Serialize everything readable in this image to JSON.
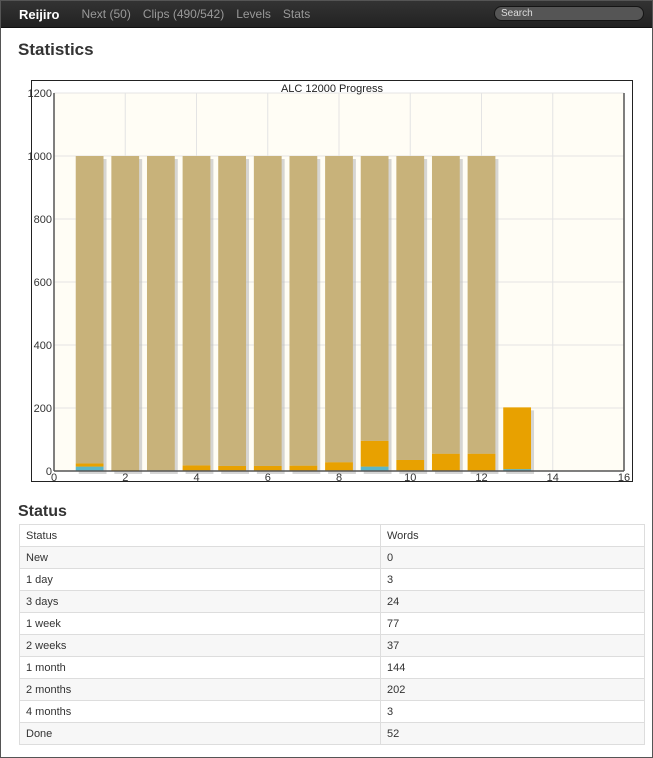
{
  "nav": {
    "brand": "Reijiro",
    "links": [
      "Next (50)",
      "Clips (490/542)",
      "Levels",
      "Stats"
    ],
    "search_placeholder": "Search"
  },
  "page": {
    "statistics_heading": "Statistics",
    "status_heading": "Status"
  },
  "chart_data": {
    "type": "bar",
    "title": "ALC 12000 Progress",
    "xlabel": "",
    "ylabel": "",
    "xlim": [
      0,
      16
    ],
    "ylim": [
      0,
      1200
    ],
    "x_ticks": [
      0,
      2,
      4,
      6,
      8,
      10,
      12,
      14,
      16
    ],
    "y_ticks": [
      0,
      200,
      400,
      600,
      800,
      1000,
      1200
    ],
    "grid": true,
    "stacked": true,
    "x": [
      1,
      2,
      3,
      4,
      5,
      6,
      7,
      8,
      9,
      10,
      11,
      12,
      13
    ],
    "series": [
      {
        "color": "#5bb7c7",
        "values": [
          14,
          1,
          0,
          1,
          0,
          0,
          1,
          1,
          14,
          2,
          1,
          1,
          6
        ]
      },
      {
        "color": "#e8a100",
        "values": [
          10,
          2,
          2,
          17,
          16,
          16,
          16,
          27,
          82,
          33,
          54,
          54,
          196
        ]
      },
      {
        "color": "#c8b27a",
        "values": [
          976,
          997,
          998,
          982,
          984,
          984,
          983,
          972,
          904,
          965,
          945,
          945,
          0
        ]
      }
    ]
  },
  "status_table": {
    "headers": [
      "Status",
      "Words"
    ],
    "rows": [
      [
        "New",
        "0"
      ],
      [
        "1 day",
        "3"
      ],
      [
        "3 days",
        "24"
      ],
      [
        "1 week",
        "77"
      ],
      [
        "2 weeks",
        "37"
      ],
      [
        "1 month",
        "144"
      ],
      [
        "2 months",
        "202"
      ],
      [
        "4 months",
        "3"
      ],
      [
        "Done",
        "52"
      ]
    ]
  }
}
